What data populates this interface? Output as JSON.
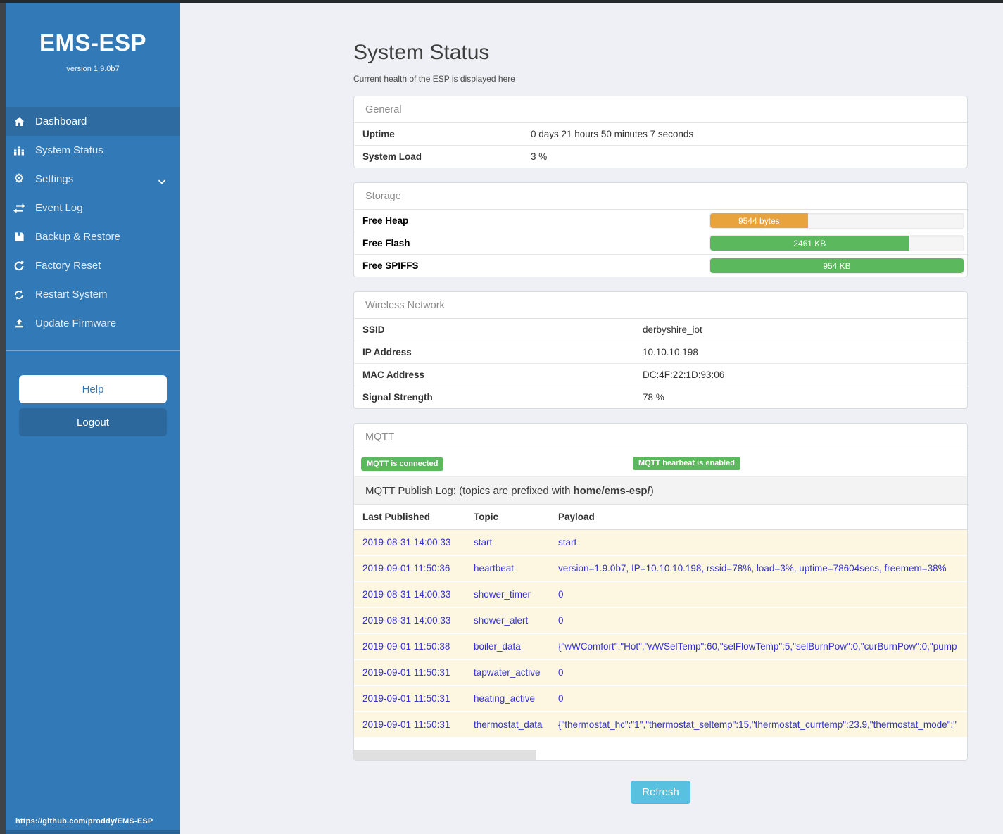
{
  "colors": {
    "sidebar": "#3279b7",
    "sidebar_active": "#2d6ba1",
    "green": "#5cb85c",
    "orange": "#e8a33c",
    "refresh_blue": "#58c1e0",
    "link_blue": "#3433cf"
  },
  "sidebar": {
    "title": "EMS-ESP",
    "version": "version 1.9.0b7",
    "items": [
      {
        "label": "Dashboard",
        "icon": "home-icon",
        "active": true
      },
      {
        "label": "System Status",
        "icon": "bar-chart-icon",
        "active": false
      },
      {
        "label": "Settings",
        "icon": "gear-icon",
        "active": false,
        "has_submenu": true
      },
      {
        "label": "Event Log",
        "icon": "exchange-arrows-icon",
        "active": false
      },
      {
        "label": "Backup & Restore",
        "icon": "save-icon",
        "active": false
      },
      {
        "label": "Factory Reset",
        "icon": "rotate-icon",
        "active": false
      },
      {
        "label": "Restart System",
        "icon": "refresh-icon",
        "active": false
      },
      {
        "label": "Update Firmware",
        "icon": "upload-icon",
        "active": false
      }
    ],
    "help_label": "Help",
    "logout_label": "Logout",
    "footer_link": "https://github.com/proddy/EMS-ESP"
  },
  "page": {
    "title": "System Status",
    "subtitle": "Current health of the ESP is displayed here",
    "refresh_label": "Refresh"
  },
  "general": {
    "title": "General",
    "rows": [
      {
        "label": "Uptime",
        "value": "0 days 21 hours 50 minutes 7 seconds"
      },
      {
        "label": "System Load",
        "value": "3 %"
      }
    ]
  },
  "storage": {
    "title": "Storage",
    "rows": [
      {
        "label": "Free Heap",
        "value": "9544 bytes",
        "percent": 38.5,
        "color": "orange"
      },
      {
        "label": "Free Flash",
        "value": "2461 KB",
        "percent": 78.5,
        "color": "green"
      },
      {
        "label": "Free SPIFFS",
        "value": "954 KB",
        "percent": 100,
        "color": "green"
      }
    ]
  },
  "wireless": {
    "title": "Wireless Network",
    "rows": [
      {
        "label": "SSID",
        "value": "derbyshire_iot"
      },
      {
        "label": "IP Address",
        "value": "10.10.10.198"
      },
      {
        "label": "MAC Address",
        "value": "DC:4F:22:1D:93:06"
      },
      {
        "label": "Signal Strength",
        "value": "78 %"
      }
    ]
  },
  "mqtt": {
    "title": "MQTT",
    "badges": [
      "MQTT is connected",
      "MQTT hearbeat is enabled"
    ],
    "publish_log_prefix": "MQTT Publish Log: (topics are prefixed with",
    "publish_log_topic": "home/ems-esp/",
    "publish_log_suffix": ")",
    "table": {
      "headers": [
        "Last Published",
        "Topic",
        "Payload"
      ],
      "rows": [
        {
          "published": "2019-08-31 14:00:33",
          "topic": "start",
          "payload": "start"
        },
        {
          "published": "2019-09-01 11:50:36",
          "topic": "heartbeat",
          "payload": "version=1.9.0b7, IP=10.10.10.198, rssid=78%, load=3%, uptime=78604secs, freemem=38%"
        },
        {
          "published": "2019-08-31 14:00:33",
          "topic": "shower_timer",
          "payload": "0"
        },
        {
          "published": "2019-08-31 14:00:33",
          "topic": "shower_alert",
          "payload": "0"
        },
        {
          "published": "2019-09-01 11:50:38",
          "topic": "boiler_data",
          "payload": "{\"wWComfort\":\"Hot\",\"wWSelTemp\":60,\"selFlowTemp\":5,\"selBurnPow\":0,\"curBurnPow\":0,\"pump"
        },
        {
          "published": "2019-09-01 11:50:31",
          "topic": "tapwater_active",
          "payload": "0"
        },
        {
          "published": "2019-09-01 11:50:31",
          "topic": "heating_active",
          "payload": "0"
        },
        {
          "published": "2019-09-01 11:50:31",
          "topic": "thermostat_data",
          "payload": "{\"thermostat_hc\":\"1\",\"thermostat_seltemp\":15,\"thermostat_currtemp\":23.9,\"thermostat_mode\":\""
        }
      ]
    }
  }
}
